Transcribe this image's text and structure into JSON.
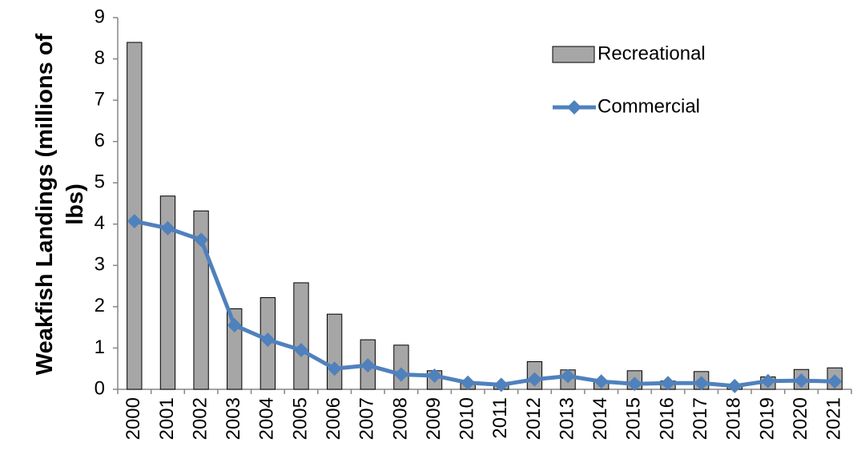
{
  "chart_data": {
    "type": "bar",
    "y_label": "Weakfish Landings (millions of lbs)",
    "categories": [
      "2000",
      "2001",
      "2002",
      "2003",
      "2004",
      "2005",
      "2006",
      "2007",
      "2008",
      "2009",
      "2010",
      "2011",
      "2012",
      "2013",
      "2014",
      "2015",
      "2016",
      "2017",
      "2018",
      "2019",
      "2020",
      "2021"
    ],
    "series": [
      {
        "name": "Recreational",
        "type": "bar",
        "color": "#a6a6a6",
        "values": [
          8.4,
          4.68,
          4.32,
          1.95,
          2.22,
          2.58,
          1.82,
          1.2,
          1.07,
          0.45,
          0.15,
          0.1,
          0.67,
          0.47,
          0.2,
          0.45,
          0.2,
          0.43,
          0.1,
          0.3,
          0.48,
          0.52
        ]
      },
      {
        "name": "Commercial",
        "type": "line",
        "color": "#4f81bd",
        "values": [
          4.07,
          3.9,
          3.62,
          1.55,
          1.2,
          0.95,
          0.5,
          0.58,
          0.36,
          0.33,
          0.16,
          0.11,
          0.24,
          0.32,
          0.19,
          0.13,
          0.15,
          0.15,
          0.08,
          0.2,
          0.21,
          0.19
        ]
      }
    ],
    "ylim": [
      0,
      9
    ],
    "yticks": [
      0,
      1,
      2,
      3,
      4,
      5,
      6,
      7,
      8,
      9
    ],
    "grid": false,
    "legend": "top-right"
  }
}
